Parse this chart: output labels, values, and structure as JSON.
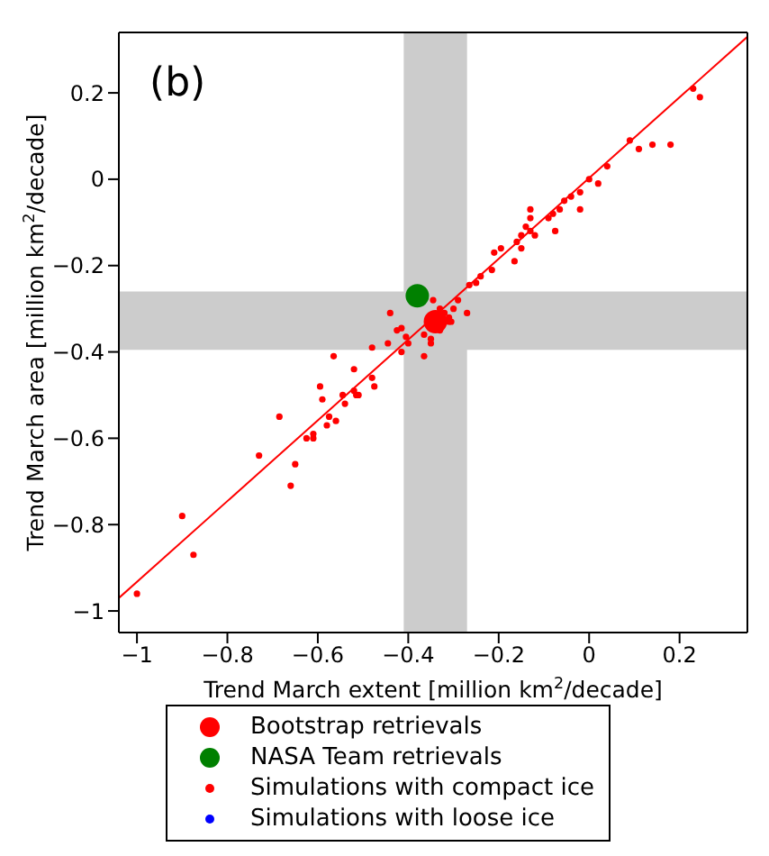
{
  "chart_data": {
    "type": "scatter",
    "xlabel": "Trend March extent [million km$^{2}$/decade]",
    "ylabel": "Trend March area [million km$^{2}$/decade]",
    "annotations": [
      "(b)"
    ],
    "xlim": [
      -1.04,
      0.35
    ],
    "ylim": [
      -1.05,
      0.34
    ],
    "xticks": [
      -1,
      -0.8,
      -0.6,
      -0.4,
      -0.2,
      0,
      0.2
    ],
    "yticks": [
      -1,
      -0.8,
      -0.6,
      -0.4,
      -0.2,
      0,
      0.2
    ],
    "legend": "bottom",
    "bands": [
      {
        "axis": "x",
        "from": -0.41,
        "to": -0.27,
        "color": "#cccccc"
      },
      {
        "axis": "y",
        "from": -0.395,
        "to": -0.26,
        "color": "#cccccc"
      }
    ],
    "series": [
      {
        "type": "line",
        "marker": "none",
        "color": "#ff0000",
        "x": [
          -1.04,
          0.35
        ],
        "values": [
          -0.97,
          0.33
        ]
      },
      {
        "name": "Bootstrap retrievals",
        "marker": "circle",
        "color": "#ff0000",
        "x": [
          -0.34
        ],
        "values": [
          -0.33
        ]
      },
      {
        "name": "NASA Team retrievals",
        "marker": "circle",
        "color": "#008000",
        "x": [
          -0.38
        ],
        "values": [
          -0.27
        ]
      },
      {
        "name": "Simulations with compact ice",
        "marker": "circle",
        "color": "#ff0000",
        "x": [
          0.23,
          0.245,
          0.09,
          0.11,
          0.14,
          0.18,
          0.04,
          0.0,
          0.02,
          -0.02,
          -0.02,
          -0.04,
          -0.055,
          -0.065,
          -0.08,
          -0.09,
          -0.075,
          -0.13,
          -0.13,
          -0.14,
          -0.13,
          -0.12,
          -0.15,
          -0.16,
          -0.15,
          -0.195,
          -0.165,
          -0.21,
          -0.215,
          -0.24,
          -0.25,
          -0.265,
          -0.27,
          -0.29,
          -0.3,
          -0.31,
          -0.31,
          -0.345,
          -0.33,
          -0.44,
          -0.425,
          -0.445,
          -0.365,
          -0.35,
          -0.415,
          -0.405,
          -0.48,
          -0.4,
          -0.415,
          -0.365,
          -0.35,
          -0.33,
          -0.305,
          -0.32,
          -0.565,
          -0.52,
          -0.48,
          -0.475,
          -0.595,
          -0.59,
          -0.545,
          -0.54,
          -0.52,
          -0.515,
          -0.51,
          -0.685,
          -0.575,
          -0.58,
          -0.56,
          -0.61,
          -0.625,
          -0.61,
          -0.73,
          -0.65,
          -0.66,
          -0.9,
          -0.875,
          -1.0
        ],
        "values": [
          0.21,
          0.19,
          0.09,
          0.07,
          0.08,
          0.08,
          0.03,
          0.0,
          -0.01,
          -0.03,
          -0.07,
          -0.04,
          -0.05,
          -0.07,
          -0.08,
          -0.09,
          -0.12,
          -0.07,
          -0.09,
          -0.11,
          -0.12,
          -0.13,
          -0.13,
          -0.145,
          -0.16,
          -0.16,
          -0.19,
          -0.17,
          -0.21,
          -0.225,
          -0.24,
          -0.245,
          -0.31,
          -0.28,
          -0.3,
          -0.32,
          -0.33,
          -0.28,
          -0.3,
          -0.31,
          -0.35,
          -0.38,
          -0.36,
          -0.38,
          -0.345,
          -0.365,
          -0.39,
          -0.38,
          -0.4,
          -0.41,
          -0.37,
          -0.35,
          -0.33,
          -0.31,
          -0.41,
          -0.44,
          -0.46,
          -0.48,
          -0.48,
          -0.51,
          -0.5,
          -0.52,
          -0.49,
          -0.5,
          -0.5,
          -0.55,
          -0.55,
          -0.57,
          -0.56,
          -0.59,
          -0.6,
          -0.6,
          -0.64,
          -0.66,
          -0.71,
          -0.78,
          -0.87,
          -0.96
        ]
      },
      {
        "name": "Simulations with loose ice",
        "marker": "circle",
        "color": "#0000ff"
      }
    ]
  }
}
